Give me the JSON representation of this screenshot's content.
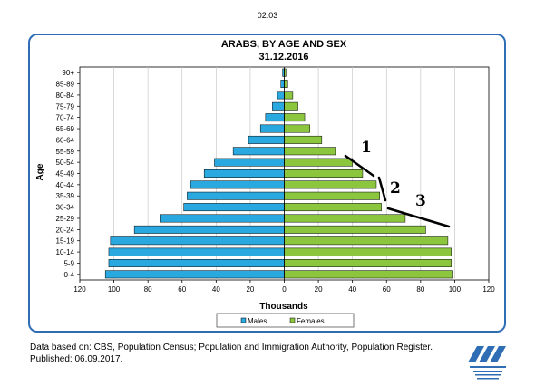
{
  "page_number": "02.03",
  "footer": {
    "line1": "Data based on: CBS, Population Census; Population and Immigration Authority, Population Register.",
    "line2": "Published: 06.09.2017."
  },
  "annotations": [
    {
      "label": "1"
    },
    {
      "label": "2"
    },
    {
      "label": "3"
    }
  ],
  "colors": {
    "frame": "#2f6db5",
    "males": "#29a9e0",
    "females": "#8cc63f",
    "grid": "#c8c8c8",
    "annotation": "#000000"
  },
  "chart_data": {
    "type": "bar",
    "orientation": "horizontal-population-pyramid",
    "title": "ARABS, BY AGE AND SEX",
    "subtitle": "31.12.2016",
    "xlabel": "Thousands",
    "ylabel": "Age",
    "xlim": [
      -120,
      120
    ],
    "x_ticks": [
      -120,
      -100,
      -80,
      -60,
      -40,
      -20,
      0,
      20,
      40,
      60,
      80,
      100,
      120
    ],
    "x_tick_labels": [
      "120",
      "100",
      "80",
      "60",
      "40",
      "20",
      "0",
      "20",
      "40",
      "60",
      "80",
      "100",
      "120"
    ],
    "grid": true,
    "legend_position": "bottom",
    "categories": [
      "0-4",
      "5-9",
      "10-14",
      "15-19",
      "20-24",
      "25-29",
      "30-34",
      "35-39",
      "40-44",
      "45-49",
      "50-54",
      "55-59",
      "60-64",
      "65-69",
      "70-74",
      "75-79",
      "80-84",
      "85-89",
      "90+"
    ],
    "series": [
      {
        "name": "Males",
        "values": [
          105,
          103,
          103,
          102,
          88,
          73,
          59,
          57,
          55,
          47,
          41,
          30,
          21,
          14,
          11,
          7,
          4,
          2,
          1
        ]
      },
      {
        "name": "Females",
        "values": [
          99,
          98,
          98,
          96,
          83,
          71,
          57,
          56,
          54,
          46,
          40,
          30,
          22,
          15,
          12,
          8,
          5,
          2,
          1
        ]
      }
    ]
  }
}
